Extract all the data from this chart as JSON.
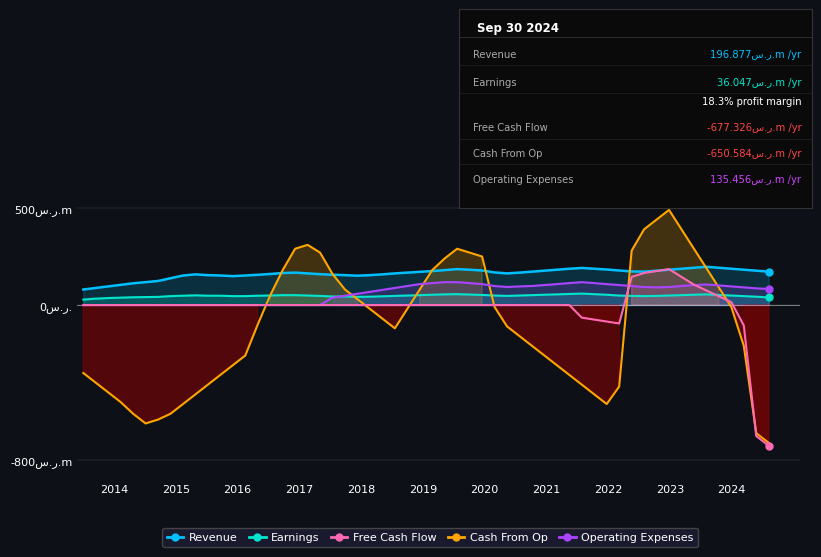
{
  "background_color": "#0d1117",
  "plot_bg_color": "#0d1117",
  "box_bg_color": "#0a0a0a",
  "box_border_color": "#333333",
  "date_label": "Sep 30 2024",
  "ylim": [
    -900,
    600
  ],
  "xlim": [
    2013.4,
    2025.1
  ],
  "yticks": [
    -800,
    0,
    500
  ],
  "ytick_labels": [
    "-800س.ر.m",
    "0س.ر.",
    "500س.ر.m"
  ],
  "xtick_positions": [
    2014,
    2015,
    2016,
    2017,
    2018,
    2019,
    2020,
    2021,
    2022,
    2023,
    2024
  ],
  "colors": {
    "revenue": "#00bfff",
    "earnings": "#00e5cc",
    "free_cash_flow": "#ff69b4",
    "cash_from_op": "#ffa500",
    "operating_expenses": "#aa44ff"
  },
  "info_rows": [
    {
      "label": "Revenue",
      "value": "196.877س.ر.m /yr",
      "value_color": "#00bfff"
    },
    {
      "label": "Earnings",
      "value": "36.047س.ر.m /yr",
      "value_color": "#00e5cc"
    },
    {
      "label": "",
      "value": "18.3% profit margin",
      "value_color": "#ffffff"
    },
    {
      "label": "Free Cash Flow",
      "value": "-677.326س.ر.m /yr",
      "value_color": "#ff4444"
    },
    {
      "label": "Cash From Op",
      "value": "-650.584س.ر.m /yr",
      "value_color": "#ff4444"
    },
    {
      "label": "Operating Expenses",
      "value": "135.456س.ر.m /yr",
      "value_color": "#cc44ff"
    }
  ],
  "legend_labels": [
    "Revenue",
    "Earnings",
    "Free Cash Flow",
    "Cash From Op",
    "Operating Expenses"
  ],
  "revenue": [
    80,
    88,
    96,
    104,
    112,
    118,
    124,
    138,
    152,
    158,
    154,
    152,
    149,
    152,
    156,
    160,
    165,
    167,
    163,
    159,
    156,
    154,
    151,
    154,
    158,
    163,
    167,
    171,
    175,
    180,
    185,
    182,
    178,
    168,
    163,
    167,
    172,
    177,
    182,
    187,
    191,
    187,
    183,
    178,
    173,
    172,
    177,
    182,
    187,
    192,
    197,
    192,
    187,
    182,
    177,
    172
  ],
  "earnings": [
    28,
    33,
    36,
    38,
    40,
    41,
    42,
    46,
    48,
    50,
    48,
    48,
    46,
    46,
    48,
    49,
    51,
    51,
    49,
    47,
    44,
    44,
    42,
    43,
    45,
    47,
    49,
    51,
    53,
    55,
    56,
    54,
    52,
    49,
    47,
    49,
    51,
    53,
    55,
    57,
    59,
    56,
    53,
    49,
    47,
    46,
    47,
    49,
    51,
    53,
    55,
    52,
    49,
    46,
    43,
    39
  ],
  "cash_from_op": [
    -350,
    -400,
    -450,
    -500,
    -560,
    -610,
    -590,
    -560,
    -510,
    -460,
    -410,
    -360,
    -310,
    -260,
    -100,
    50,
    180,
    290,
    310,
    270,
    160,
    80,
    30,
    -20,
    -70,
    -120,
    -20,
    80,
    180,
    240,
    290,
    270,
    250,
    -10,
    -110,
    -160,
    -210,
    -260,
    -310,
    -360,
    -410,
    -460,
    -510,
    -420,
    280,
    390,
    440,
    490,
    390,
    290,
    190,
    90,
    -10,
    -210,
    -660,
    -710
  ],
  "operating_expenses": [
    0,
    0,
    0,
    0,
    0,
    0,
    0,
    0,
    0,
    0,
    0,
    0,
    0,
    0,
    0,
    0,
    0,
    0,
    0,
    0,
    38,
    48,
    58,
    68,
    78,
    88,
    98,
    108,
    113,
    118,
    118,
    113,
    108,
    98,
    93,
    96,
    98,
    103,
    108,
    113,
    118,
    113,
    108,
    103,
    98,
    93,
    91,
    93,
    98,
    103,
    106,
    101,
    96,
    91,
    86,
    83
  ],
  "free_cash_flow": [
    0,
    0,
    0,
    0,
    0,
    0,
    0,
    0,
    0,
    0,
    0,
    0,
    0,
    0,
    0,
    0,
    0,
    0,
    0,
    0,
    0,
    0,
    0,
    0,
    0,
    0,
    0,
    0,
    0,
    0,
    0,
    0,
    0,
    0,
    0,
    0,
    0,
    0,
    0,
    0,
    -65,
    -75,
    -85,
    -95,
    145,
    165,
    175,
    185,
    145,
    105,
    75,
    45,
    15,
    -105,
    -675,
    -725
  ]
}
